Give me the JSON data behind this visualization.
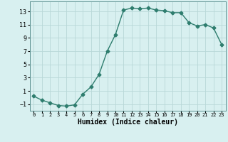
{
  "x": [
    0,
    1,
    2,
    3,
    4,
    5,
    6,
    7,
    8,
    9,
    10,
    11,
    12,
    13,
    14,
    15,
    16,
    17,
    18,
    19,
    20,
    21,
    22,
    23
  ],
  "y": [
    0.2,
    -0.4,
    -0.8,
    -1.2,
    -1.3,
    -1.1,
    0.5,
    1.6,
    3.5,
    7.0,
    9.5,
    13.2,
    13.5,
    13.4,
    13.5,
    13.2,
    13.1,
    12.8,
    12.8,
    11.3,
    10.8,
    11.0,
    10.5,
    8.0
  ],
  "xlabel": "Humidex (Indice chaleur)",
  "xlim": [
    -0.5,
    23.5
  ],
  "ylim": [
    -2.0,
    14.5
  ],
  "yticks": [
    -1,
    1,
    3,
    5,
    7,
    9,
    11,
    13
  ],
  "xticks": [
    0,
    1,
    2,
    3,
    4,
    5,
    6,
    7,
    8,
    9,
    10,
    11,
    12,
    13,
    14,
    15,
    16,
    17,
    18,
    19,
    20,
    21,
    22,
    23
  ],
  "xtick_labels": [
    "0",
    "1",
    "2",
    "3",
    "4",
    "5",
    "6",
    "7",
    "8",
    "9",
    "10",
    "11",
    "12",
    "13",
    "14",
    "15",
    "16",
    "17",
    "18",
    "19",
    "20",
    "21",
    "22",
    "23"
  ],
  "line_color": "#2e7d6e",
  "marker": "D",
  "marker_size": 2.5,
  "bg_color": "#d8f0f0",
  "grid_color": "#b8d8d8",
  "line_width": 1.0
}
